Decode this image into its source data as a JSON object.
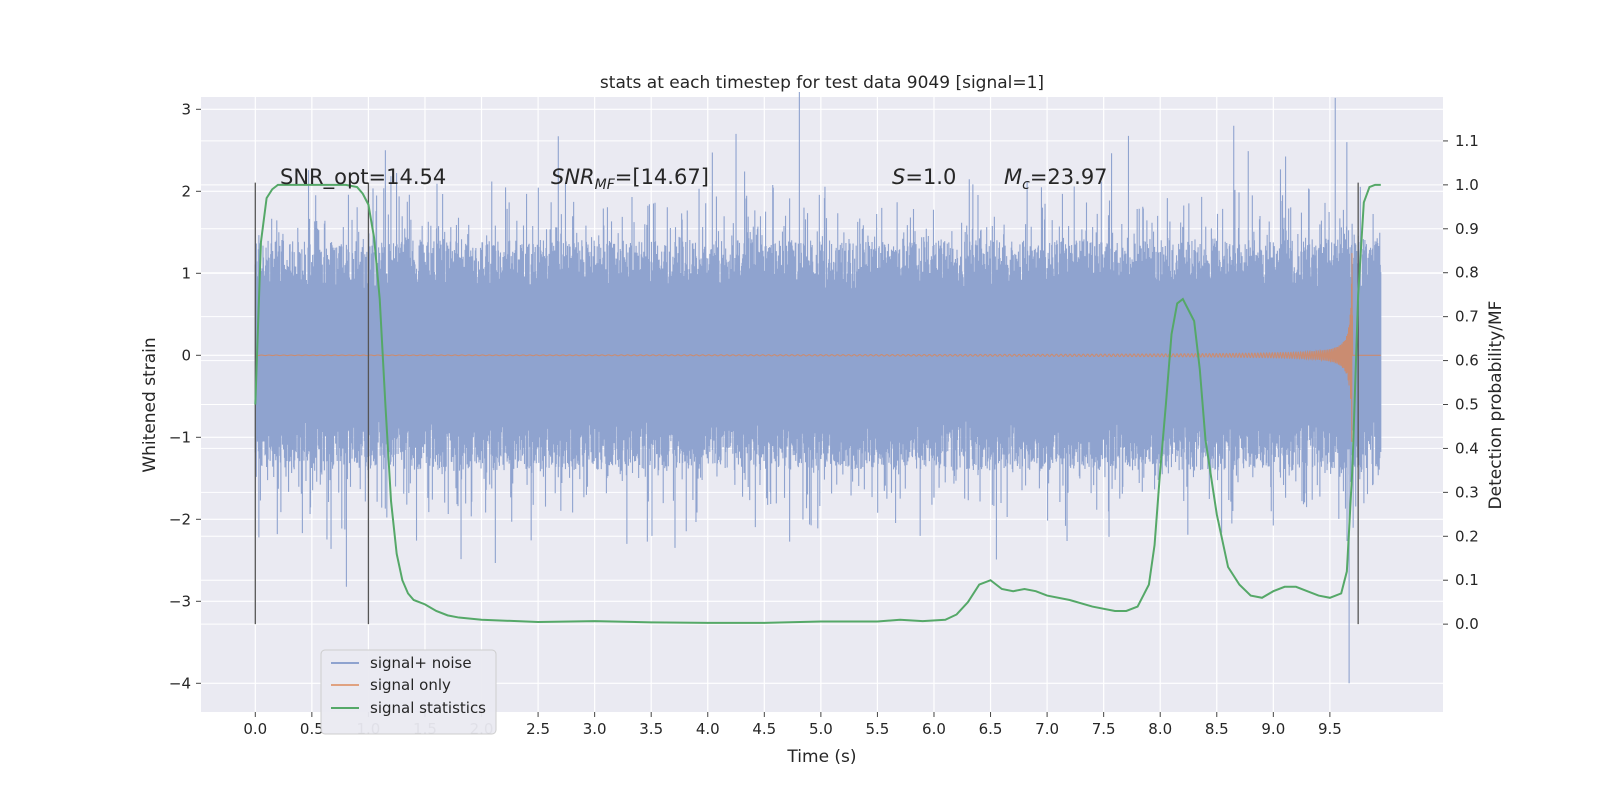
{
  "chart_data": {
    "type": "line",
    "title": "stats at each timestep for test data 9049 [signal=1]",
    "xlabel": "Time (s)",
    "ylabel": "Whitened strain",
    "y2label": "Detection probability/MF",
    "xlim": [
      -0.48,
      10.5
    ],
    "ylim": [
      -4.35,
      3.15
    ],
    "y2lim": [
      -0.2,
      1.2
    ],
    "xticks": [
      "0.0",
      "0.5",
      "1.0",
      "1.5",
      "2.0",
      "2.5",
      "3.0",
      "3.5",
      "4.0",
      "4.5",
      "5.0",
      "5.5",
      "6.0",
      "6.5",
      "7.0",
      "7.5",
      "8.0",
      "8.5",
      "9.0",
      "9.5"
    ],
    "yticks": [
      "3",
      "2",
      "1",
      "0",
      "−1",
      "−2",
      "−3",
      "−4"
    ],
    "y2ticks": [
      "1.1",
      "1.0",
      "0.9",
      "0.8",
      "0.7",
      "0.6",
      "0.5",
      "0.4",
      "0.3",
      "0.2",
      "0.1",
      "0.0"
    ],
    "grid": true,
    "legend_position": "lower-left",
    "colors": {
      "noise": "#8fa3cf",
      "signal": "#dd8452",
      "stats": "#55a868",
      "background": "#eaeaf2",
      "grid": "#ffffff",
      "vline": "#555555"
    },
    "annotations": {
      "snr_opt": "SNR_opt=14.54",
      "snr_mf_main": "SNR",
      "snr_mf_sub": "MF",
      "snr_mf_rest": "=[14.67]",
      "s_main": "S",
      "s_rest": "=1.0",
      "mc_main": "M",
      "mc_sub": "c",
      "mc_rest": "=23.97"
    },
    "vertical_lines_x": [
      0.0,
      1.0,
      9.75
    ],
    "series": [
      {
        "name": "signal+ noise",
        "description": "whitened noisy strain",
        "x_range": [
          0.0,
          9.95
        ],
        "typical_abs_max": 1.5,
        "peak_values": [
          [
            1.15,
            2.5
          ],
          [
            4.25,
            2.7
          ],
          [
            8.65,
            2.8
          ],
          [
            9.67,
            -4.0
          ],
          [
            9.65,
            2.6
          ]
        ]
      },
      {
        "name": "signal only",
        "description": "chirp waveform ending near merger",
        "x_range": [
          0.0,
          9.95
        ],
        "merger_time": 9.7,
        "peak_amplitude": 2.5
      },
      {
        "name": "signal statistics",
        "axis": "right",
        "x": [
          0.0,
          0.05,
          0.1,
          0.15,
          0.2,
          0.3,
          0.5,
          0.7,
          0.8,
          0.9,
          0.95,
          1.0,
          1.05,
          1.1,
          1.15,
          1.2,
          1.25,
          1.3,
          1.35,
          1.4,
          1.5,
          1.6,
          1.7,
          1.8,
          2.0,
          2.5,
          3.0,
          3.5,
          4.0,
          4.5,
          5.0,
          5.5,
          5.7,
          5.9,
          6.1,
          6.2,
          6.3,
          6.4,
          6.5,
          6.6,
          6.7,
          6.8,
          6.9,
          7.0,
          7.2,
          7.4,
          7.6,
          7.7,
          7.8,
          7.9,
          7.95,
          8.0,
          8.05,
          8.1,
          8.15,
          8.2,
          8.3,
          8.35,
          8.4,
          8.5,
          8.6,
          8.7,
          8.8,
          8.9,
          9.0,
          9.1,
          9.2,
          9.3,
          9.4,
          9.5,
          9.6,
          9.65,
          9.7,
          9.75,
          9.8,
          9.85,
          9.9,
          9.95
        ],
        "values": [
          0.5,
          0.87,
          0.97,
          0.99,
          1.0,
          1.0,
          1.0,
          1.0,
          1.0,
          0.995,
          0.98,
          0.955,
          0.88,
          0.74,
          0.5,
          0.28,
          0.16,
          0.1,
          0.07,
          0.055,
          0.045,
          0.03,
          0.02,
          0.015,
          0.01,
          0.005,
          0.007,
          0.004,
          0.003,
          0.003,
          0.006,
          0.006,
          0.01,
          0.007,
          0.01,
          0.022,
          0.05,
          0.09,
          0.1,
          0.08,
          0.075,
          0.08,
          0.075,
          0.065,
          0.055,
          0.04,
          0.03,
          0.03,
          0.04,
          0.09,
          0.18,
          0.35,
          0.5,
          0.66,
          0.73,
          0.74,
          0.69,
          0.58,
          0.42,
          0.25,
          0.13,
          0.09,
          0.065,
          0.06,
          0.075,
          0.085,
          0.085,
          0.075,
          0.065,
          0.06,
          0.07,
          0.12,
          0.36,
          0.75,
          0.96,
          0.995,
          1.0,
          1.0
        ]
      }
    ]
  }
}
